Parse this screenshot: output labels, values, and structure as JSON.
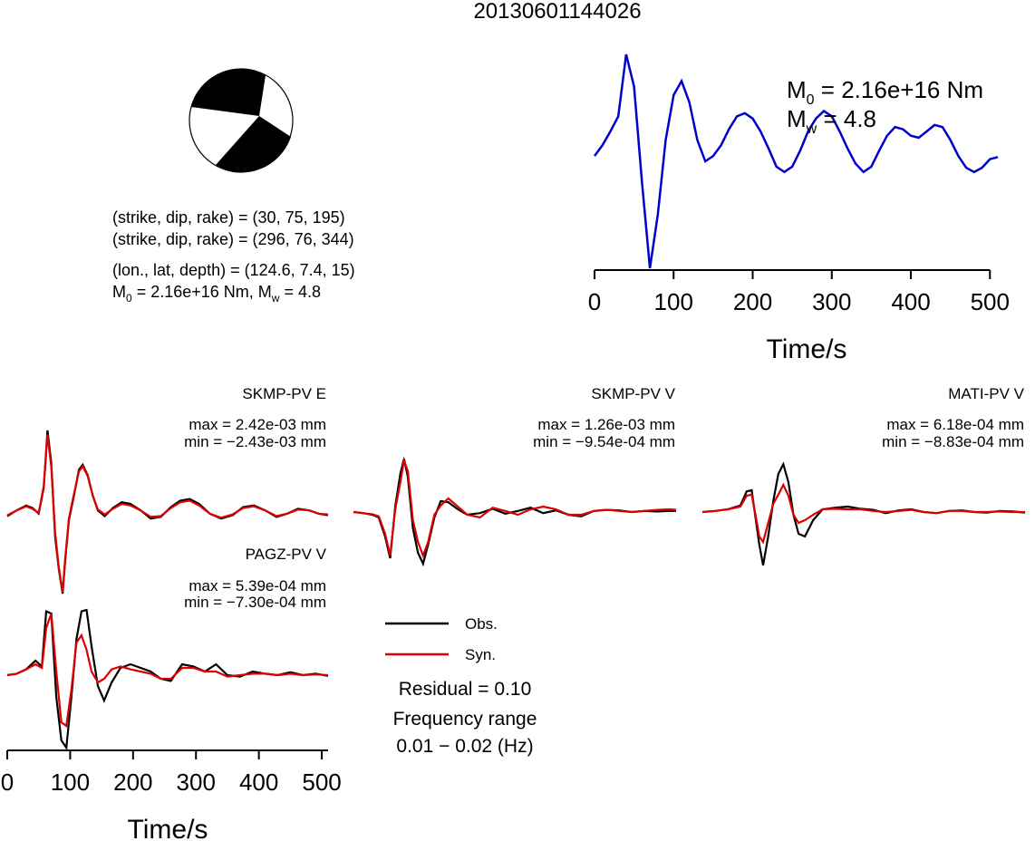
{
  "figure": {
    "title": "20130601144026",
    "colors": {
      "observed": "#000000",
      "synthetic": "#dd0000",
      "stf": "#0000cc",
      "beachball_fill": "#000000"
    }
  },
  "info": {
    "line1": "(strike, dip, rake) = (30, 75, 195)",
    "line2": "(strike, dip, rake) = (296, 76, 344)",
    "line3": "(lon., lat, depth) = (124.6, 7.4, 15)",
    "m0_prefix": "M",
    "m0_sub": "0",
    "m0_value": " = 2.16e+16 Nm, M",
    "mw_sub": "w",
    "mw_value": " = 4.8"
  },
  "stf": {
    "m0_label": "M",
    "m0_sub": "0",
    "m0_value": " = 2.16e+16 Nm",
    "mw_label": "M",
    "mw_sub": "w",
    "mw_value": " = 4.8",
    "xlabel": "Time/s",
    "xticks": [
      "0",
      "100",
      "200",
      "300",
      "400",
      "500"
    ]
  },
  "stations": [
    {
      "name": "SKMP-PV E",
      "max": "max = 2.42e-03 mm",
      "min": "min = −2.43e-03 mm"
    },
    {
      "name": "SKMP-PV V",
      "max": "max = 1.26e-03 mm",
      "min": "min = −9.54e-04 mm"
    },
    {
      "name": "MATI-PV V",
      "max": "max = 6.18e-04 mm",
      "min": "min = −8.83e-04 mm"
    },
    {
      "name": "PAGZ-PV V",
      "max": "max = 5.39e-04 mm",
      "min": "min = −7.30e-04 mm"
    }
  ],
  "bottom_axis": {
    "xlabel": "Time/s",
    "xticks": [
      "0",
      "100",
      "200",
      "300",
      "400",
      "500"
    ]
  },
  "legend": {
    "obs": "Obs.",
    "syn": "Syn.",
    "residual": "Residual = 0.10",
    "freq_label": "Frequency range",
    "freq_value": "0.01 − 0.02 (Hz)"
  },
  "chart_data": [
    {
      "type": "line",
      "title": "",
      "xlabel": "Time/s",
      "xlim": [
        0,
        510
      ],
      "series": [
        {
          "x": [
            0,
            10,
            20,
            30,
            40,
            50,
            60,
            70,
            80,
            90,
            100,
            110,
            120,
            130,
            140,
            150,
            160,
            170,
            180,
            190,
            200,
            210,
            220,
            230,
            240,
            250,
            260,
            270,
            280,
            290,
            300,
            310,
            320,
            330,
            340,
            350,
            360,
            370,
            380,
            390,
            400,
            410,
            420,
            430,
            440,
            450,
            460,
            470,
            480,
            490,
            500,
            510
          ],
          "y": [
            0.05,
            0.15,
            0.28,
            0.42,
            1.0,
            0.7,
            -0.2,
            -1.0,
            -0.5,
            0.2,
            0.62,
            0.75,
            0.55,
            0.2,
            0.0,
            0.05,
            0.15,
            0.3,
            0.42,
            0.45,
            0.4,
            0.28,
            0.12,
            -0.05,
            -0.1,
            -0.05,
            0.1,
            0.28,
            0.4,
            0.47,
            0.42,
            0.28,
            0.12,
            -0.02,
            -0.1,
            -0.05,
            0.1,
            0.24,
            0.32,
            0.3,
            0.24,
            0.22,
            0.28,
            0.34,
            0.32,
            0.2,
            0.05,
            -0.06,
            -0.1,
            -0.06,
            0.02,
            0.04
          ]
        }
      ]
    },
    {
      "type": "line",
      "title": "SKMP-PV E",
      "xlim": [
        0,
        510
      ],
      "series": [
        {
          "name": "Obs.",
          "x": [
            0,
            15,
            30,
            40,
            50,
            58,
            64,
            70,
            76,
            82,
            88,
            92,
            98,
            106,
            114,
            120,
            128,
            136,
            144,
            155,
            168,
            182,
            196,
            212,
            228,
            244,
            260,
            275,
            290,
            305,
            322,
            340,
            358,
            375,
            392,
            410,
            428,
            445,
            462,
            480,
            495,
            510
          ],
          "y": [
            -0.05,
            0.02,
            0.08,
            0.05,
            -0.02,
            0.3,
            1.0,
            0.6,
            -0.3,
            -0.7,
            -1.0,
            -0.6,
            -0.1,
            0.2,
            0.52,
            0.58,
            0.45,
            0.2,
            0.02,
            -0.05,
            0.05,
            0.12,
            0.1,
            0.02,
            -0.08,
            -0.06,
            0.06,
            0.14,
            0.16,
            0.1,
            -0.02,
            -0.08,
            -0.04,
            0.06,
            0.08,
            0.02,
            -0.06,
            -0.02,
            0.04,
            0.02,
            -0.02,
            -0.04
          ]
        },
        {
          "name": "Syn.",
          "x": [
            0,
            15,
            30,
            40,
            50,
            58,
            64,
            70,
            76,
            82,
            88,
            92,
            98,
            106,
            114,
            120,
            128,
            136,
            144,
            155,
            168,
            182,
            196,
            212,
            228,
            244,
            260,
            275,
            290,
            305,
            322,
            340,
            358,
            375,
            392,
            410,
            428,
            445,
            462,
            480,
            495,
            510
          ],
          "y": [
            -0.04,
            0.02,
            0.07,
            0.04,
            -0.01,
            0.32,
            0.95,
            0.55,
            -0.25,
            -0.68,
            -0.98,
            -0.58,
            -0.08,
            0.22,
            0.5,
            0.56,
            0.44,
            0.2,
            0.03,
            -0.03,
            0.04,
            0.1,
            0.08,
            0.02,
            -0.06,
            -0.05,
            0.05,
            0.12,
            0.14,
            0.08,
            -0.02,
            -0.07,
            -0.03,
            0.05,
            0.07,
            0.02,
            -0.05,
            -0.02,
            0.03,
            0.02,
            -0.02,
            -0.03
          ]
        }
      ]
    },
    {
      "type": "line",
      "title": "SKMP-PV V",
      "xlim": [
        0,
        510
      ],
      "series": [
        {
          "name": "Obs.",
          "x": [
            0,
            15,
            30,
            40,
            50,
            58,
            66,
            74,
            80,
            86,
            94,
            102,
            110,
            118,
            128,
            138,
            150,
            165,
            180,
            200,
            220,
            240,
            260,
            280,
            300,
            320,
            340,
            360,
            380,
            400,
            420,
            440,
            460,
            480,
            500,
            510
          ],
          "y": [
            0.0,
            -0.02,
            -0.05,
            -0.1,
            -0.45,
            -0.85,
            0.1,
            0.7,
            0.98,
            0.65,
            -0.3,
            -0.75,
            -0.95,
            -0.6,
            -0.1,
            0.2,
            0.18,
            0.05,
            -0.05,
            -0.02,
            0.06,
            -0.03,
            0.02,
            0.08,
            -0.02,
            0.03,
            -0.05,
            -0.08,
            0.02,
            0.04,
            0.03,
            0.0,
            0.02,
            0.01,
            0.02,
            0.02
          ]
        },
        {
          "name": "Syn.",
          "x": [
            0,
            15,
            30,
            40,
            50,
            58,
            66,
            74,
            80,
            86,
            94,
            102,
            110,
            118,
            128,
            138,
            150,
            165,
            180,
            200,
            220,
            240,
            260,
            280,
            300,
            320,
            340,
            360,
            380,
            400,
            420,
            440,
            460,
            480,
            500,
            510
          ],
          "y": [
            0.0,
            -0.02,
            -0.04,
            -0.08,
            -0.4,
            -0.8,
            0.05,
            0.55,
            0.95,
            0.75,
            -0.15,
            -0.55,
            -0.8,
            -0.55,
            -0.05,
            0.12,
            0.25,
            0.1,
            -0.05,
            -0.1,
            0.08,
            0.02,
            -0.05,
            0.05,
            0.1,
            0.05,
            -0.05,
            -0.05,
            0.02,
            0.04,
            0.02,
            0.0,
            0.02,
            0.04,
            0.05,
            0.04
          ]
        }
      ]
    },
    {
      "type": "line",
      "title": "MATI-PV V",
      "xlim": [
        0,
        510
      ],
      "series": [
        {
          "name": "Obs.",
          "x": [
            0,
            20,
            40,
            60,
            70,
            78,
            84,
            90,
            96,
            104,
            112,
            120,
            128,
            136,
            144,
            152,
            162,
            175,
            190,
            210,
            230,
            250,
            270,
            290,
            310,
            330,
            350,
            370,
            390,
            410,
            430,
            450,
            470,
            490,
            510
          ],
          "y": [
            0.0,
            0.02,
            0.05,
            0.12,
            0.38,
            0.4,
            -0.1,
            -0.6,
            -0.98,
            -0.45,
            0.2,
            0.7,
            0.88,
            0.55,
            -0.05,
            -0.4,
            -0.45,
            -0.15,
            0.05,
            0.08,
            0.1,
            0.06,
            0.04,
            -0.02,
            0.03,
            0.05,
            0.0,
            -0.02,
            0.02,
            0.03,
            0.0,
            -0.01,
            0.02,
            0.01,
            -0.01
          ]
        },
        {
          "name": "Syn.",
          "x": [
            0,
            20,
            40,
            60,
            70,
            78,
            84,
            90,
            96,
            104,
            112,
            120,
            128,
            136,
            144,
            152,
            162,
            175,
            190,
            210,
            230,
            250,
            270,
            290,
            310,
            330,
            350,
            370,
            390,
            410,
            430,
            450,
            470,
            490,
            510
          ],
          "y": [
            0.0,
            0.02,
            0.05,
            0.1,
            0.3,
            0.32,
            -0.05,
            -0.45,
            -0.55,
            -0.2,
            0.15,
            0.32,
            0.5,
            0.3,
            -0.05,
            -0.2,
            -0.15,
            -0.05,
            0.05,
            0.06,
            0.05,
            0.05,
            0.02,
            0.0,
            0.02,
            0.04,
            0.0,
            -0.02,
            0.02,
            0.02,
            0.0,
            0.0,
            0.01,
            0.0,
            0.0
          ]
        }
      ]
    },
    {
      "type": "line",
      "title": "PAGZ-PV V",
      "xlabel": "Time/s",
      "xlim": [
        0,
        510
      ],
      "series": [
        {
          "name": "Obs.",
          "x": [
            0,
            15,
            30,
            45,
            55,
            62,
            70,
            78,
            86,
            94,
            102,
            110,
            118,
            126,
            134,
            144,
            154,
            166,
            180,
            196,
            212,
            228,
            244,
            260,
            278,
            296,
            314,
            332,
            350,
            370,
            390,
            410,
            430,
            450,
            470,
            490,
            510
          ],
          "y": [
            0.0,
            0.02,
            0.08,
            0.2,
            0.12,
            0.88,
            0.85,
            -0.3,
            -0.9,
            -1.0,
            -0.3,
            0.5,
            0.88,
            0.9,
            0.4,
            -0.15,
            -0.35,
            -0.1,
            0.1,
            0.15,
            0.1,
            0.05,
            -0.05,
            -0.08,
            0.15,
            0.12,
            0.05,
            0.15,
            0.0,
            -0.02,
            0.05,
            0.02,
            0.0,
            0.04,
            0.0,
            0.02,
            -0.01
          ]
        },
        {
          "name": "Syn.",
          "x": [
            0,
            15,
            30,
            45,
            55,
            62,
            70,
            78,
            86,
            94,
            102,
            110,
            118,
            126,
            134,
            144,
            154,
            166,
            180,
            196,
            212,
            228,
            244,
            260,
            278,
            296,
            314,
            332,
            350,
            370,
            390,
            410,
            430,
            450,
            470,
            490,
            510
          ],
          "y": [
            0.0,
            0.02,
            0.08,
            0.15,
            0.1,
            0.65,
            0.85,
            0.05,
            -0.65,
            -0.7,
            -0.2,
            0.45,
            0.55,
            0.35,
            0.05,
            -0.1,
            -0.05,
            0.08,
            0.12,
            0.08,
            0.05,
            0.02,
            -0.05,
            -0.05,
            0.1,
            0.1,
            0.05,
            0.05,
            -0.02,
            0.0,
            0.02,
            0.02,
            0.0,
            0.02,
            0.0,
            0.01,
            0.0
          ]
        }
      ]
    }
  ]
}
